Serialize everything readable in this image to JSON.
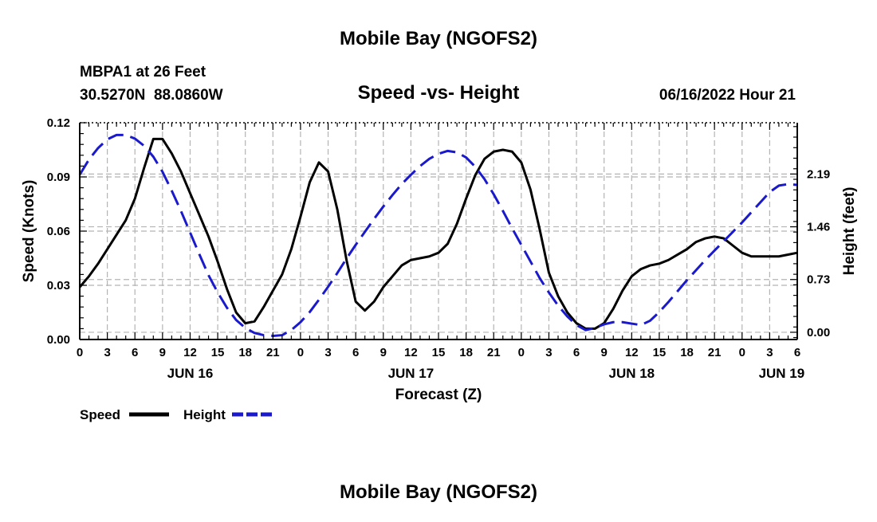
{
  "page": {
    "title_top": "Mobile Bay (NGOFS2)",
    "title_bottom": "Mobile Bay (NGOFS2)",
    "station_line": "MBPA1 at 26 Feet",
    "coords_line": "30.5270N  88.0860W",
    "chart_title": "Speed -vs- Height",
    "forecast_time": "06/16/2022 Hour 21",
    "legend": {
      "speed_label": "Speed",
      "height_label": "Height"
    }
  },
  "colors": {
    "speed": "#000000",
    "height": "#1a1acc",
    "grid": "#b4b4b4"
  },
  "chart_data": {
    "type": "line",
    "title": "Speed -vs- Height",
    "xlabel": "Forecast (Z)",
    "ylabel": "Speed (Knots)",
    "ylabel_right": "Height (feet)",
    "x_unit": "hours from 2022-06-16 00Z",
    "xlim": [
      0,
      78
    ],
    "ylim": [
      0,
      0.12
    ],
    "ylim_right": [
      -0.1,
      2.9
    ],
    "x_ticks": [
      0,
      3,
      6,
      9,
      12,
      15,
      18,
      21,
      24,
      27,
      30,
      33,
      36,
      39,
      42,
      45,
      48,
      51,
      54,
      57,
      60,
      63,
      66,
      69,
      72,
      75,
      78
    ],
    "x_tick_labels": [
      "0",
      "3",
      "6",
      "9",
      "12",
      "15",
      "18",
      "21",
      "0",
      "3",
      "6",
      "9",
      "12",
      "15",
      "18",
      "21",
      "0",
      "3",
      "6",
      "9",
      "12",
      "15",
      "18",
      "21",
      "0",
      "3",
      "6"
    ],
    "date_labels": [
      {
        "x": 12,
        "label": "JUN 16"
      },
      {
        "x": 36,
        "label": "JUN 17"
      },
      {
        "x": 60,
        "label": "JUN 18"
      },
      {
        "x": 76.3,
        "label": "JUN 19"
      }
    ],
    "y_ticks": [
      0,
      0.03,
      0.06,
      0.09,
      0.12
    ],
    "y_tick_labels": [
      "0.00",
      "0.03",
      "0.06",
      "0.09",
      "0.12"
    ],
    "y_right_ticks": [
      0,
      0.73,
      1.46,
      2.19
    ],
    "y_right_tick_labels": [
      "0.00",
      "0.73",
      "1.46",
      "2.19"
    ],
    "grid": true,
    "legend_position": "bottom-left",
    "series": [
      {
        "name": "Speed",
        "axis": "left",
        "style": "solid",
        "x": [
          0,
          1,
          2,
          3,
          4,
          5,
          6,
          7,
          8,
          9,
          10,
          11,
          12,
          13,
          14,
          15,
          16,
          17,
          18,
          19,
          20,
          21,
          22,
          23,
          24,
          25,
          26,
          27,
          28,
          29,
          30,
          31,
          32,
          33,
          34,
          35,
          36,
          37,
          38,
          39,
          40,
          41,
          42,
          43,
          44,
          45,
          46,
          47,
          48,
          49,
          50,
          51,
          52,
          53,
          54,
          55,
          56,
          57,
          58,
          59,
          60,
          61,
          62,
          63,
          64,
          65,
          66,
          67,
          68,
          69,
          70,
          71,
          72,
          73,
          74,
          75,
          76,
          77,
          78
        ],
        "values": [
          0.029,
          0.035,
          0.042,
          0.05,
          0.058,
          0.066,
          0.078,
          0.095,
          0.111,
          0.111,
          0.103,
          0.093,
          0.081,
          0.069,
          0.057,
          0.043,
          0.028,
          0.015,
          0.009,
          0.01,
          0.018,
          0.027,
          0.036,
          0.05,
          0.068,
          0.087,
          0.098,
          0.093,
          0.072,
          0.044,
          0.021,
          0.016,
          0.021,
          0.029,
          0.035,
          0.041,
          0.044,
          0.045,
          0.046,
          0.048,
          0.053,
          0.064,
          0.078,
          0.091,
          0.1,
          0.104,
          0.105,
          0.104,
          0.098,
          0.083,
          0.061,
          0.037,
          0.024,
          0.015,
          0.009,
          0.006,
          0.006,
          0.009,
          0.017,
          0.027,
          0.035,
          0.039,
          0.041,
          0.042,
          0.044,
          0.047,
          0.05,
          0.054,
          0.056,
          0.057,
          0.056,
          0.052,
          0.048,
          0.046,
          0.046,
          0.046,
          0.046,
          0.047,
          0.048
        ]
      },
      {
        "name": "Height",
        "axis": "right",
        "style": "dashed",
        "x": [
          0,
          1,
          2,
          3,
          4,
          5,
          6,
          7,
          8,
          9,
          10,
          11,
          12,
          13,
          14,
          15,
          16,
          17,
          18,
          19,
          20,
          21,
          22,
          23,
          24,
          25,
          26,
          27,
          28,
          29,
          30,
          31,
          32,
          33,
          34,
          35,
          36,
          37,
          38,
          39,
          40,
          41,
          42,
          43,
          44,
          45,
          46,
          47,
          48,
          49,
          50,
          51,
          52,
          53,
          54,
          55,
          56,
          57,
          58,
          59,
          60,
          61,
          62,
          63,
          64,
          65,
          66,
          67,
          68,
          69,
          70,
          71,
          72,
          73,
          74,
          75,
          76,
          77,
          78
        ],
        "values": [
          2.18,
          2.39,
          2.55,
          2.67,
          2.73,
          2.73,
          2.68,
          2.58,
          2.43,
          2.22,
          1.96,
          1.68,
          1.38,
          1.08,
          0.79,
          0.55,
          0.34,
          0.17,
          0.06,
          -0.01,
          -0.04,
          -0.05,
          -0.04,
          0.03,
          0.14,
          0.28,
          0.45,
          0.63,
          0.82,
          1.02,
          1.21,
          1.39,
          1.57,
          1.74,
          1.9,
          2.05,
          2.18,
          2.3,
          2.4,
          2.47,
          2.51,
          2.49,
          2.42,
          2.29,
          2.12,
          1.91,
          1.68,
          1.44,
          1.21,
          0.98,
          0.75,
          0.55,
          0.37,
          0.22,
          0.1,
          0.03,
          0.06,
          0.11,
          0.14,
          0.14,
          0.12,
          0.1,
          0.16,
          0.28,
          0.42,
          0.57,
          0.72,
          0.86,
          1.0,
          1.13,
          1.26,
          1.39,
          1.52,
          1.66,
          1.8,
          1.94,
          2.03,
          2.05,
          2.04
        ]
      }
    ]
  }
}
